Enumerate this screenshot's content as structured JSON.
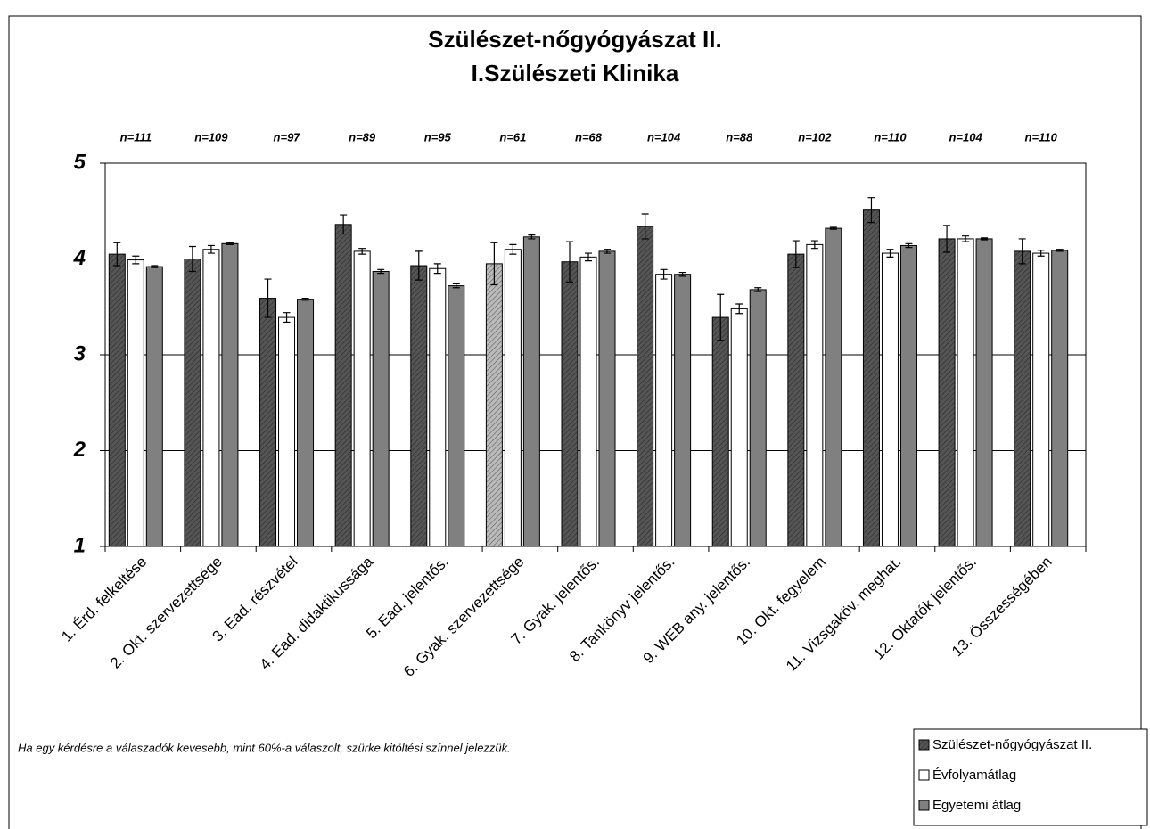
{
  "chart_data": {
    "type": "bar",
    "title": "Szülészet-nőgyógyászat II.",
    "subtitle": "I.Szülészeti Klinika",
    "annotations": [
      "n=111",
      "n=109",
      "n=97",
      "n=89",
      "n=95",
      "n=61",
      "n=68",
      "n=104",
      "n=88",
      "n=102",
      "n=110",
      "n=104",
      "n=110"
    ],
    "note": "Ha egy kérdésre a válaszadók kevesebb, mint 60%-a válaszolt, szürke kitöltési színnel jelezzük.",
    "categories": [
      "1. Érd. felkeltése",
      "2. Okt. szervezettsége",
      "3. Ead. részvétel",
      "4. Ead. didaktikussága",
      "5. Ead. jelentős.",
      "6. Gyak. szervezettsége",
      "7. Gyak. jelentős.",
      "8. Tankönyv jelentős.",
      "9. WEB any. jelentős.",
      "10. Okt. fegyelem",
      "11. Vizsgaköv. meghat.",
      "12. Oktatók jelentős.",
      "13. Összességében"
    ],
    "series": [
      {
        "name": "Szülészet-nőgyógyászat II.",
        "color": "#555555",
        "colors": [
          "#555555",
          "#555555",
          "#555555",
          "#555555",
          "#555555",
          "#bbbbbb",
          "#555555",
          "#555555",
          "#555555",
          "#555555",
          "#555555",
          "#555555",
          "#555555"
        ],
        "values": [
          4.05,
          4.0,
          3.59,
          4.36,
          3.93,
          3.95,
          3.97,
          4.34,
          3.39,
          4.05,
          4.51,
          4.21,
          4.08
        ],
        "errors": [
          0.12,
          0.13,
          0.2,
          0.1,
          0.15,
          0.22,
          0.21,
          0.13,
          0.24,
          0.14,
          0.13,
          0.14,
          0.13
        ]
      },
      {
        "name": "Évfolyamátlag",
        "color": "#ffffff",
        "values": [
          3.99,
          4.1,
          3.39,
          4.08,
          3.9,
          4.1,
          4.02,
          3.84,
          3.48,
          4.15,
          4.06,
          4.21,
          4.06
        ],
        "errors": [
          0.04,
          0.04,
          0.05,
          0.03,
          0.05,
          0.05,
          0.04,
          0.05,
          0.05,
          0.04,
          0.04,
          0.03,
          0.03
        ]
      },
      {
        "name": "Egyetemi átlag",
        "color": "#808080",
        "values": [
          3.92,
          4.16,
          3.58,
          3.87,
          3.72,
          4.23,
          4.08,
          3.84,
          3.68,
          4.32,
          4.14,
          4.21,
          4.09
        ],
        "errors": [
          0.01,
          0.01,
          0.01,
          0.02,
          0.02,
          0.02,
          0.02,
          0.02,
          0.02,
          0.01,
          0.02,
          0.01,
          0.01
        ]
      }
    ],
    "ylim": [
      1,
      5
    ],
    "yticks": [
      1,
      2,
      3,
      4,
      5
    ],
    "grid": true,
    "legend": "bottom-right"
  }
}
